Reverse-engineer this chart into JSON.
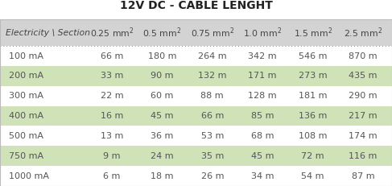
{
  "title": "12V DC - CABLE LENGHT",
  "header": [
    "Electricity \\ Section",
    "0.25 mm²",
    "0.5 mm²",
    "0.75 mm²",
    "1.0 mm²",
    "1.5 mm²",
    "2.5 mm²"
  ],
  "rows": [
    [
      "100 mA",
      "66 m",
      "180 m",
      "264 m",
      "342 m",
      "546 m",
      "870 m"
    ],
    [
      "200 mA",
      "33 m",
      "90 m",
      "132 m",
      "171 m",
      "273 m",
      "435 m"
    ],
    [
      "300 mA",
      "22 m",
      "60 m",
      "88 m",
      "128 m",
      "181 m",
      "290 m"
    ],
    [
      "400 mA",
      "16 m",
      "45 m",
      "66 m",
      "85 m",
      "136 m",
      "217 m"
    ],
    [
      "500 mA",
      "13 m",
      "36 m",
      "53 m",
      "68 m",
      "108 m",
      "174 m"
    ],
    [
      "750 mA",
      "9 m",
      "24 m",
      "35 m",
      "45 m",
      "72 m",
      "116 m"
    ],
    [
      "1000 mA",
      "6 m",
      "18 m",
      "26 m",
      "34 m",
      "54 m",
      "87 m"
    ]
  ],
  "header_bg": "#d3d3d3",
  "row_colors": [
    "#ffffff",
    "#cfe2b8",
    "#ffffff",
    "#cfe2b8",
    "#ffffff",
    "#cfe2b8",
    "#ffffff"
  ],
  "title_fontsize": 10,
  "header_fontsize": 7.8,
  "cell_fontsize": 8,
  "header_text_color": "#444444",
  "cell_text_color": "#555555",
  "col_weights": [
    1.65,
    1.0,
    1.0,
    1.0,
    1.0,
    1.0,
    1.0
  ],
  "col_aligns": [
    "left",
    "center",
    "center",
    "center",
    "center",
    "center",
    "center"
  ],
  "outer_border_color": "#bbbbbb",
  "dotted_line_color": "#888888"
}
